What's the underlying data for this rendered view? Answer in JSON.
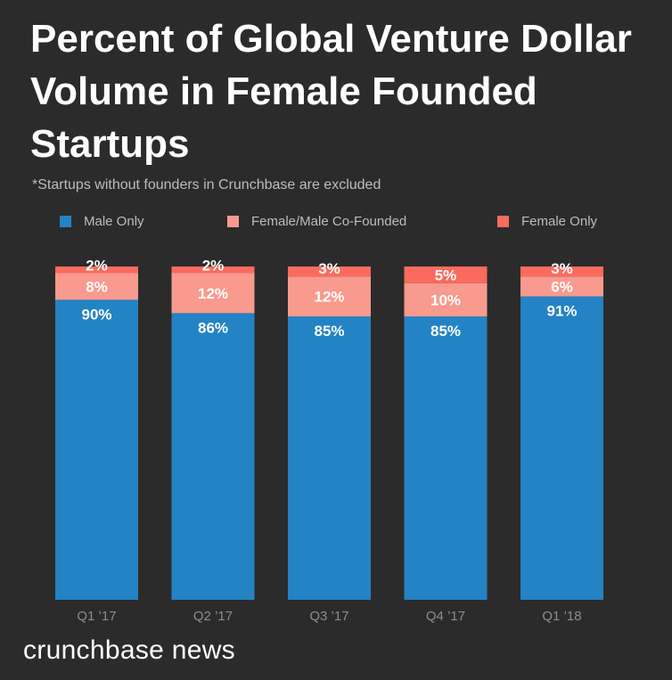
{
  "colors": {
    "background": "#2b2b2b",
    "male_only": "#2383c5",
    "co_founded": "#f99a8e",
    "female_only": "#fa6b5e"
  },
  "chart_data": {
    "type": "bar",
    "stacked": true,
    "title": "Percent of Global Venture Dollar Volume in Female Founded Startups",
    "subtitle": "*Startups without founders in Crunchbase are excluded",
    "categories": [
      "Q1 ’17",
      "Q2 ’17",
      "Q3 ’17",
      "Q4 ’17",
      "Q1 ’18"
    ],
    "series": [
      {
        "name": "Male Only",
        "values": [
          90,
          86,
          85,
          85,
          91
        ],
        "labels": [
          "90%",
          "86%",
          "85%",
          "85%",
          "91%"
        ]
      },
      {
        "name": "Female/Male Co-Founded",
        "values": [
          8,
          12,
          12,
          10,
          6
        ],
        "labels": [
          "8%",
          "12%",
          "12%",
          "10%",
          "6%"
        ]
      },
      {
        "name": "Female Only",
        "values": [
          2,
          2,
          3,
          5,
          3
        ],
        "labels": [
          "2%",
          "2%",
          "3%",
          "5%",
          "3%"
        ]
      }
    ],
    "ylim": [
      0,
      100
    ],
    "grid": false,
    "legend_position": "top"
  },
  "brand": "crunchbase news"
}
